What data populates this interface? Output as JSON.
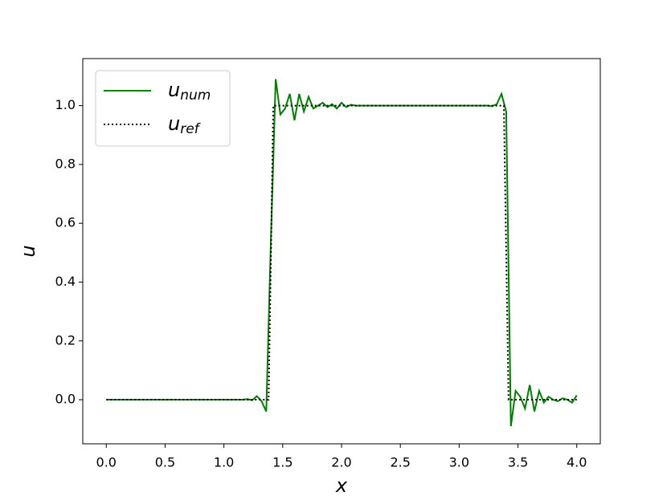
{
  "chart_data": {
    "type": "line",
    "xlabel": "x",
    "ylabel": "u",
    "xlim": [
      -0.2,
      4.2
    ],
    "ylim": [
      -0.15,
      1.16
    ],
    "xticks": [
      {
        "value": 0,
        "label": "0.0"
      },
      0.5,
      {
        "value": 1,
        "label": "1.0"
      },
      1.5,
      {
        "value": 2,
        "label": "2.0"
      },
      2.5,
      {
        "value": 3,
        "label": "3.0"
      },
      3.5,
      {
        "value": 4,
        "label": "4.0"
      }
    ],
    "yticks": [
      {
        "value": 0,
        "label": "0.0"
      },
      0.2,
      0.4,
      0.6,
      0.8,
      {
        "value": 1,
        "label": "1.0"
      }
    ],
    "legend": "upper left",
    "series": [
      {
        "name": "u",
        "subscript": "num",
        "color": "#008000",
        "style": "solid",
        "x": [
          0,
          0.04,
          0.08,
          0.12,
          0.16,
          0.2,
          0.24,
          0.28,
          0.32,
          0.36,
          0.4,
          0.44,
          0.48,
          0.52,
          0.56,
          0.6,
          0.64,
          0.68,
          0.72,
          0.76,
          0.8,
          0.84,
          0.88,
          0.92,
          0.96,
          1.0,
          1.04,
          1.08,
          1.12,
          1.16,
          1.2,
          1.24,
          1.28,
          1.32,
          1.36,
          1.4,
          1.44,
          1.48,
          1.52,
          1.56,
          1.6,
          1.64,
          1.68,
          1.72,
          1.76,
          1.8,
          1.84,
          1.88,
          1.92,
          1.96,
          2.0,
          2.04,
          2.08,
          2.12,
          2.16,
          2.2,
          2.24,
          2.28,
          2.32,
          2.36,
          2.4,
          2.44,
          2.48,
          2.52,
          2.56,
          2.6,
          2.64,
          2.68,
          2.72,
          2.76,
          2.8,
          2.84,
          2.88,
          2.92,
          2.96,
          3.0,
          3.04,
          3.08,
          3.12,
          3.16,
          3.2,
          3.24,
          3.28,
          3.32,
          3.36,
          3.4,
          3.44,
          3.48,
          3.52,
          3.56,
          3.6,
          3.64,
          3.68,
          3.72,
          3.76,
          3.8,
          3.84,
          3.88,
          3.92,
          3.96,
          4.0
        ],
        "values": [
          0,
          0,
          0,
          0,
          0,
          0,
          0,
          0,
          0,
          0,
          0,
          0,
          0,
          0,
          0,
          0,
          0,
          0,
          0,
          0,
          0,
          0,
          0,
          0,
          0,
          0,
          0,
          0,
          0,
          0,
          0.002,
          -0.002,
          0.012,
          -0.005,
          -0.04,
          0.55,
          1.09,
          0.97,
          0.99,
          1.04,
          0.95,
          1.04,
          0.98,
          1.03,
          0.99,
          1.0,
          1.01,
          0.995,
          1.005,
          0.99,
          1.01,
          0.995,
          1.003,
          1.0,
          1.0,
          1.0,
          1.0,
          1.0,
          1.0,
          1.0,
          1.0,
          1.0,
          1.0,
          1.0,
          1.0,
          1.0,
          1.0,
          1.0,
          1.0,
          1.0,
          1.0,
          1.0,
          1.0,
          1.0,
          1.0,
          1.0,
          1.0,
          1.0,
          1.0,
          1.0,
          1.0,
          1.0,
          0.998,
          1.005,
          1.04,
          0.98,
          -0.09,
          0.03,
          0.01,
          -0.03,
          0.05,
          -0.04,
          0.03,
          -0.01,
          0.01,
          0,
          -0.005,
          0.005,
          0,
          -0.01,
          0.015
        ]
      },
      {
        "name": "u",
        "subscript": "ref",
        "color": "#000000",
        "style": "dotted",
        "x": [
          0,
          1.38,
          1.42,
          3.38,
          3.42,
          4.0
        ],
        "values": [
          0,
          0,
          1,
          1,
          0,
          0
        ]
      }
    ]
  }
}
